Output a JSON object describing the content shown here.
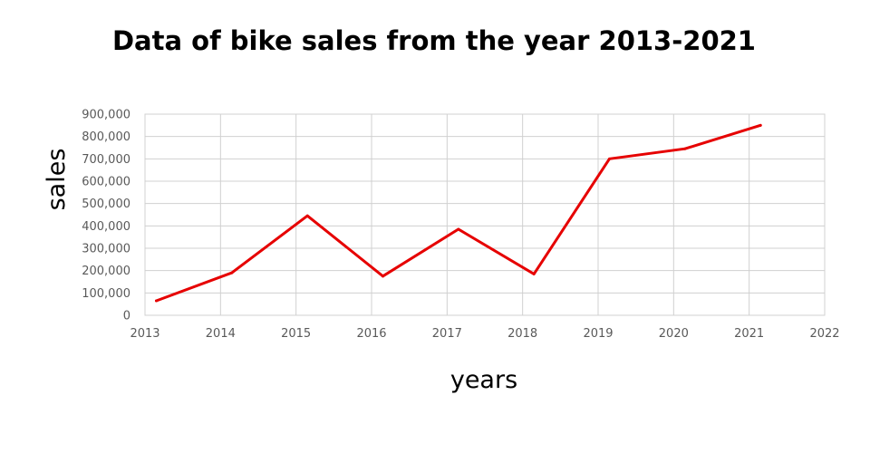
{
  "chart_data": {
    "type": "line",
    "title": "Data of bike sales from the year 2013-2021",
    "xlabel": "years",
    "ylabel": "sales",
    "xlim": [
      2013,
      2022
    ],
    "ylim": [
      0,
      900000
    ],
    "x_ticks": [
      "2013",
      "2014",
      "2015",
      "2016",
      "2017",
      "2018",
      "2019",
      "2020",
      "2021",
      "2022"
    ],
    "y_ticks": [
      "0",
      "100,000",
      "200,000",
      "300,000",
      "400,000",
      "500,000",
      "600,000",
      "700,000",
      "800,000",
      "900,000"
    ],
    "grid": true,
    "legend": "none",
    "series": [
      {
        "color": "#e60000",
        "x": [
          2013.15,
          2014.15,
          2015.15,
          2016.15,
          2017.15,
          2018.15,
          2019.15,
          2020.15,
          2021.15
        ],
        "values": [
          65000,
          190000,
          445000,
          175000,
          385000,
          185000,
          700000,
          745000,
          850000
        ]
      }
    ]
  }
}
